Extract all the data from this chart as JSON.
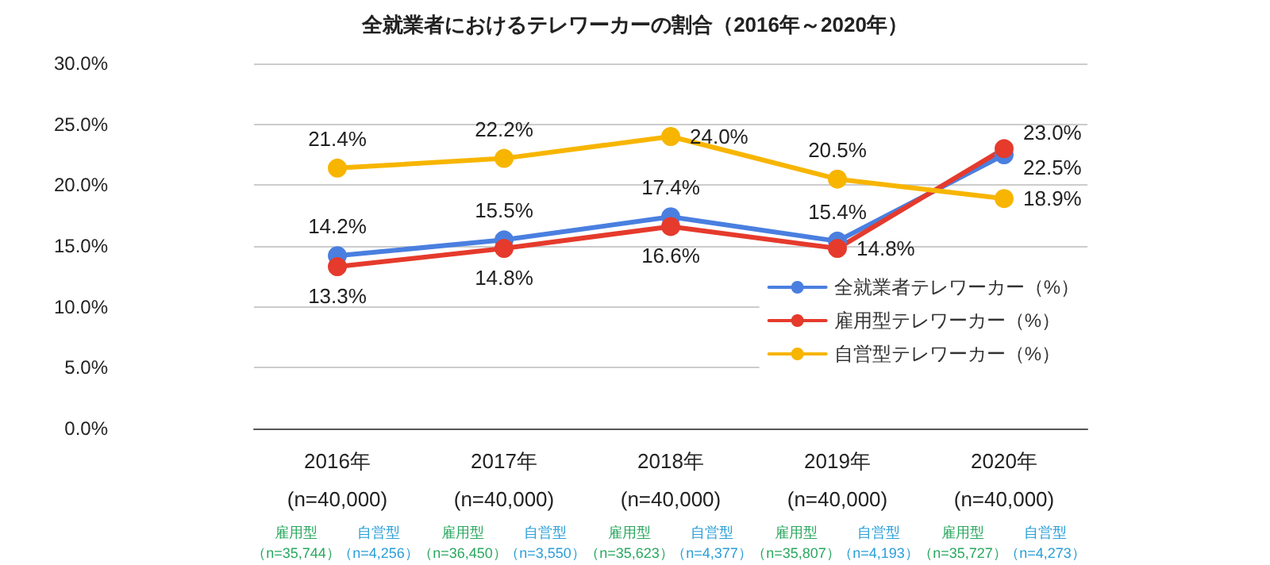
{
  "chart_data": {
    "type": "line",
    "title": "全就業者におけるテレワーカーの割合（2016年～2020年）",
    "categories": [
      "2016年",
      "2017年",
      "2018年",
      "2019年",
      "2020年"
    ],
    "series": [
      {
        "name": "全就業者テレワーカー（%）",
        "color": "#4a7fe0",
        "values": [
          14.2,
          15.5,
          17.4,
          15.4,
          22.5
        ],
        "value_labels": [
          "14.2%",
          "15.5%",
          "17.4%",
          "15.4%",
          "22.5%"
        ]
      },
      {
        "name": "雇用型テレワーカー（%）",
        "color": "#e53a2c",
        "values": [
          13.3,
          14.8,
          16.6,
          14.8,
          23.0
        ],
        "value_labels": [
          "13.3%",
          "14.8%",
          "16.6%",
          "14.8%",
          "23.0%"
        ]
      },
      {
        "name": "自営型テレワーカー（%）",
        "color": "#f7b500",
        "values": [
          21.4,
          22.2,
          24.0,
          20.5,
          18.9
        ],
        "value_labels": [
          "21.4%",
          "22.2%",
          "24.0%",
          "20.5%",
          "18.9%"
        ]
      }
    ],
    "ylim": [
      0,
      30
    ],
    "yticks": [
      {
        "value": 0,
        "label": "0.0%"
      },
      {
        "value": 5,
        "label": "5.0%"
      },
      {
        "value": 10,
        "label": "10.0%"
      },
      {
        "value": 15,
        "label": "15.0%"
      },
      {
        "value": 20,
        "label": "20.0%"
      },
      {
        "value": 25,
        "label": "25.0%"
      },
      {
        "value": 30,
        "label": "30.0%"
      }
    ],
    "grid": "y",
    "legend": "right",
    "marker": "circle",
    "line_style": "solid",
    "annotations": [
      "(n=40,000)",
      "(n=40,000)",
      "(n=40,000)",
      "(n=40,000)",
      "(n=40,000)",
      "雇用型（n=35,744）",
      "自営型（n=4,256）",
      "雇用型（n=36,450）",
      "自営型（n=3,550）",
      "雇用型（n=35,623）",
      "自営型（n=4,377）",
      "雇用型（n=35,807）",
      "自営型（n=4,193）",
      "雇用型（n=35,727）",
      "自営型（n=4,273）"
    ]
  }
}
